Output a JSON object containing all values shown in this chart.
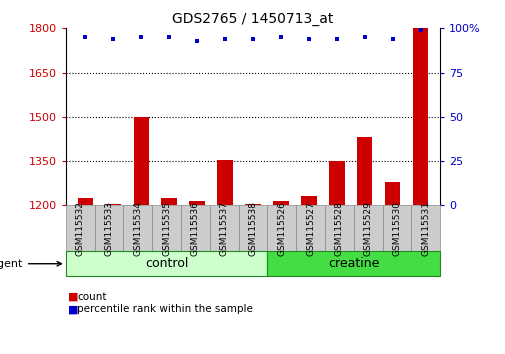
{
  "title": "GDS2765 / 1450713_at",
  "samples": [
    "GSM115532",
    "GSM115533",
    "GSM115534",
    "GSM115535",
    "GSM115536",
    "GSM115537",
    "GSM115538",
    "GSM115526",
    "GSM115527",
    "GSM115528",
    "GSM115529",
    "GSM115530",
    "GSM115531"
  ],
  "counts": [
    1225,
    1205,
    1500,
    1225,
    1215,
    1355,
    1205,
    1215,
    1230,
    1350,
    1430,
    1280,
    1800
  ],
  "percentile_ranks": [
    95,
    94,
    95,
    95,
    93,
    94,
    94,
    95,
    94,
    94,
    95,
    94,
    99
  ],
  "bar_color": "#cc0000",
  "dot_color": "#0000cc",
  "left_ylim": [
    1200,
    1800
  ],
  "left_yticks": [
    1200,
    1350,
    1500,
    1650,
    1800
  ],
  "right_ylim": [
    0,
    100
  ],
  "right_yticks": [
    0,
    25,
    50,
    75,
    100
  ],
  "control_samples": 7,
  "creatine_samples": 6,
  "control_label": "control",
  "creatine_label": "creatine",
  "agent_label": "agent",
  "legend_count_label": "count",
  "legend_pct_label": "percentile rank within the sample",
  "control_color": "#ccffcc",
  "creatine_color": "#44dd44",
  "sample_box_color": "#cccccc",
  "background_color": "#ffffff",
  "bar_width": 0.55,
  "grid_yticks": [
    1350,
    1500,
    1650
  ]
}
